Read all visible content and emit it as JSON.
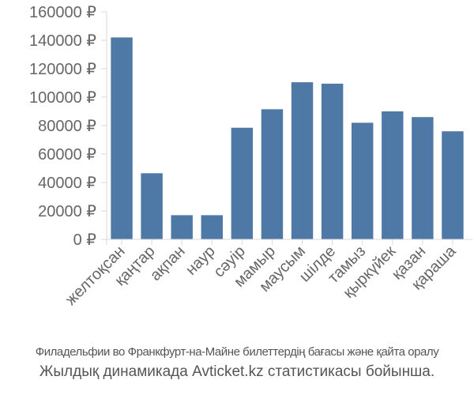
{
  "chart_data": {
    "type": "bar",
    "categories": [
      "желтоқсан",
      "қаңтар",
      "ақпан",
      "наур",
      "сәуір",
      "мамыр",
      "маусым",
      "шілде",
      "тамыз",
      "қыркүйек",
      "қазан",
      "қараша"
    ],
    "values": [
      142000,
      46500,
      17000,
      17000,
      78500,
      91500,
      110500,
      109500,
      82000,
      90000,
      86000,
      76000
    ],
    "ylim": [
      0,
      160000
    ],
    "yticks": [
      0,
      20000,
      40000,
      60000,
      80000,
      100000,
      120000,
      140000,
      160000
    ],
    "ytick_labels": [
      "0 ₽",
      "20000 ₽",
      "40000 ₽",
      "60000 ₽",
      "80000 ₽",
      "100000 ₽",
      "120000 ₽",
      "140000 ₽",
      "160000 ₽"
    ],
    "grid": false,
    "bar_color": "#4e79a7",
    "axis_color": "#d9d9d9"
  },
  "caption": {
    "line1": "Филадельфии во Франкфурт-на-Майне билеттердің бағасы және қайта оралу",
    "line2": "Жылдық динамикада Avticket.kz статистикасы бойынша."
  }
}
